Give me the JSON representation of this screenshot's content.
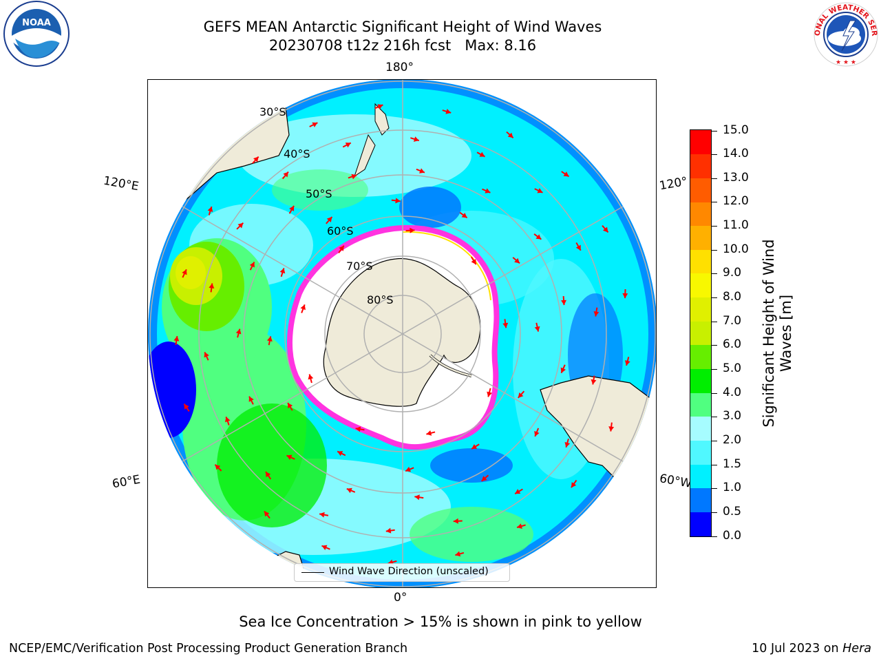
{
  "title": {
    "line1": "GEFS MEAN Antarctic Significant Height of Wind Waves",
    "line2": "20230708 t12z 216h fcst   Max: 8.16"
  },
  "logos": {
    "left": "noaa-logo",
    "right": "nws-logo",
    "noaa_text": "NOAA",
    "nws_text": "NATIONAL WEATHER SERVICE"
  },
  "map": {
    "projection": "south polar stereographic",
    "lon_labels": {
      "top": "180°",
      "upper_left": "120°E",
      "upper_right": "120°",
      "lower_left": "60°E",
      "lower_right": "60°W",
      "bottom": "0°"
    },
    "lat_labels": [
      "30°S",
      "40°S",
      "50°S",
      "60°S",
      "70°S",
      "80°S"
    ],
    "legend": "Wind Wave Direction (unscaled)",
    "colors": {
      "land": "#efebd9",
      "ocean_moderate": "#00f0ff",
      "ice_edge": "#ff33e0",
      "arrows": "#ff0000",
      "grid": "#b0b0b0"
    }
  },
  "colorbar": {
    "label": "Significant Height of Wind Waves [m]",
    "ticks": [
      "0.0",
      "0.5",
      "1.0",
      "1.5",
      "2.0",
      "3.0",
      "4.0",
      "5.0",
      "6.0",
      "7.0",
      "8.0",
      "9.0",
      "10.0",
      "11.0",
      "12.0",
      "13.0",
      "14.0",
      "15.0"
    ],
    "colors": [
      "#0000ff",
      "#0078ff",
      "#00f0ff",
      "#50f8ff",
      "#a6fcff",
      "#50ff80",
      "#00ee00",
      "#66ee00",
      "#c8f000",
      "#e0f000",
      "#f8f800",
      "#ffe000",
      "#ffb000",
      "#ff8800",
      "#ff5c00",
      "#ff3000",
      "#ff0000"
    ]
  },
  "notes": {
    "ice": "Sea Ice Concentration > 15% is shown in pink to yellow"
  },
  "footer": {
    "left": "NCEP/EMC/Verification Post Processing Product Generation Branch",
    "date": "10 Jul 2023 on ",
    "machine": "Hera"
  }
}
